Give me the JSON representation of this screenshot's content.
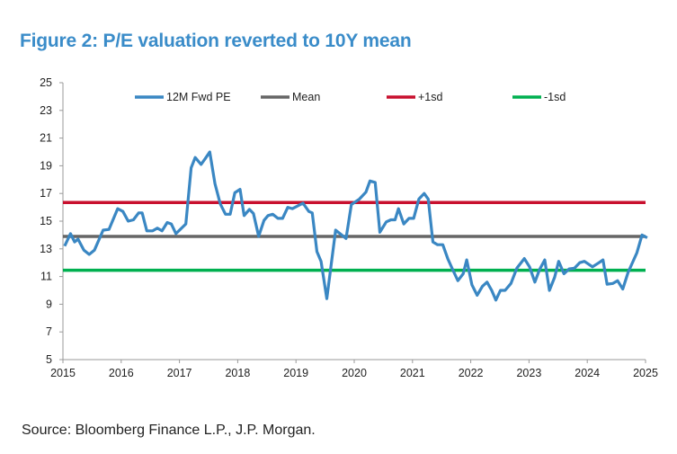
{
  "title": "Figure 2: P/E valuation reverted to 10Y mean",
  "source": "Source: Bloomberg Finance L.P., J.P. Morgan.",
  "chart_data": {
    "type": "line",
    "title": "Figure 2: P/E valuation reverted to 10Y mean",
    "xlabel": "",
    "ylabel": "",
    "xlim": [
      2015,
      2025
    ],
    "ylim": [
      5,
      25
    ],
    "x_ticks": [
      2015,
      2016,
      2017,
      2018,
      2019,
      2020,
      2021,
      2022,
      2023,
      2024,
      2025
    ],
    "y_ticks": [
      5,
      7,
      9,
      11,
      13,
      15,
      17,
      19,
      21,
      23,
      25
    ],
    "grid": false,
    "legend_placement": "top",
    "colors": {
      "pe": "#3a87c3",
      "mean": "#666666",
      "plus1sd": "#c8102e",
      "minus1sd": "#00b050"
    },
    "series": [
      {
        "name": "12M Fwd PE",
        "key": "pe",
        "x": [
          2015.03,
          2015.13,
          2015.2,
          2015.26,
          2015.36,
          2015.45,
          2015.54,
          2015.69,
          2015.79,
          2015.94,
          2016.03,
          2016.12,
          2016.21,
          2016.3,
          2016.36,
          2016.44,
          2016.54,
          2016.62,
          2016.7,
          2016.79,
          2016.86,
          2016.94,
          2017.11,
          2017.2,
          2017.27,
          2017.37,
          2017.44,
          2017.52,
          2017.61,
          2017.7,
          2017.79,
          2017.87,
          2017.95,
          2018.04,
          2018.11,
          2018.2,
          2018.27,
          2018.36,
          2018.45,
          2018.52,
          2018.6,
          2018.69,
          2018.77,
          2018.86,
          2018.94,
          2019.12,
          2019.22,
          2019.28,
          2019.36,
          2019.43,
          2019.53,
          2019.68,
          2019.86,
          2019.95,
          2020.09,
          2020.2,
          2020.27,
          2020.36,
          2020.44,
          2020.55,
          2020.63,
          2020.7,
          2020.76,
          2020.85,
          2020.94,
          2021.02,
          2021.11,
          2021.2,
          2021.27,
          2021.35,
          2021.43,
          2021.52,
          2021.61,
          2021.69,
          2021.78,
          2021.87,
          2021.93,
          2022.02,
          2022.11,
          2022.2,
          2022.28,
          2022.36,
          2022.43,
          2022.51,
          2022.59,
          2022.69,
          2022.79,
          2022.92,
          2023.01,
          2023.1,
          2023.18,
          2023.27,
          2023.35,
          2023.44,
          2023.51,
          2023.6,
          2023.69,
          2023.78,
          2023.87,
          2023.95,
          2024.09,
          2024.2,
          2024.27,
          2024.34,
          2024.44,
          2024.52,
          2024.61,
          2024.7,
          2024.85,
          2024.94,
          2025.03
        ],
        "values": [
          13.2,
          14.1,
          13.5,
          13.7,
          12.9,
          12.6,
          12.9,
          14.35,
          14.4,
          15.9,
          15.7,
          15.0,
          15.1,
          15.6,
          15.6,
          14.3,
          14.3,
          14.5,
          14.3,
          14.9,
          14.8,
          14.1,
          14.8,
          18.85,
          19.6,
          19.1,
          19.5,
          20.0,
          17.7,
          16.25,
          15.5,
          15.5,
          17.05,
          17.3,
          15.4,
          15.85,
          15.55,
          13.9,
          15.05,
          15.4,
          15.5,
          15.2,
          15.2,
          16.0,
          15.9,
          16.3,
          15.7,
          15.6,
          12.8,
          12.1,
          9.4,
          14.35,
          13.75,
          16.2,
          16.6,
          17.1,
          17.9,
          17.8,
          14.2,
          14.95,
          15.1,
          15.1,
          15.9,
          14.8,
          15.2,
          15.2,
          16.6,
          17.0,
          16.6,
          13.5,
          13.3,
          13.3,
          12.25,
          11.5,
          10.7,
          11.2,
          12.2,
          10.4,
          9.65,
          10.3,
          10.6,
          10.0,
          9.3,
          10.0,
          10.0,
          10.5,
          11.6,
          12.3,
          11.7,
          10.6,
          11.5,
          12.2,
          10.0,
          10.95,
          12.1,
          11.2,
          11.55,
          11.6,
          12.0,
          12.1,
          11.7,
          12.0,
          12.2,
          10.45,
          10.5,
          10.7,
          10.1,
          11.3,
          12.7,
          14.0,
          13.8
        ]
      },
      {
        "name": "Mean",
        "key": "mean",
        "constant": 13.9
      },
      {
        "name": "+1sd",
        "key": "plus1sd",
        "constant": 16.35
      },
      {
        "name": "-1sd",
        "key": "minus1sd",
        "constant": 11.45
      }
    ]
  }
}
